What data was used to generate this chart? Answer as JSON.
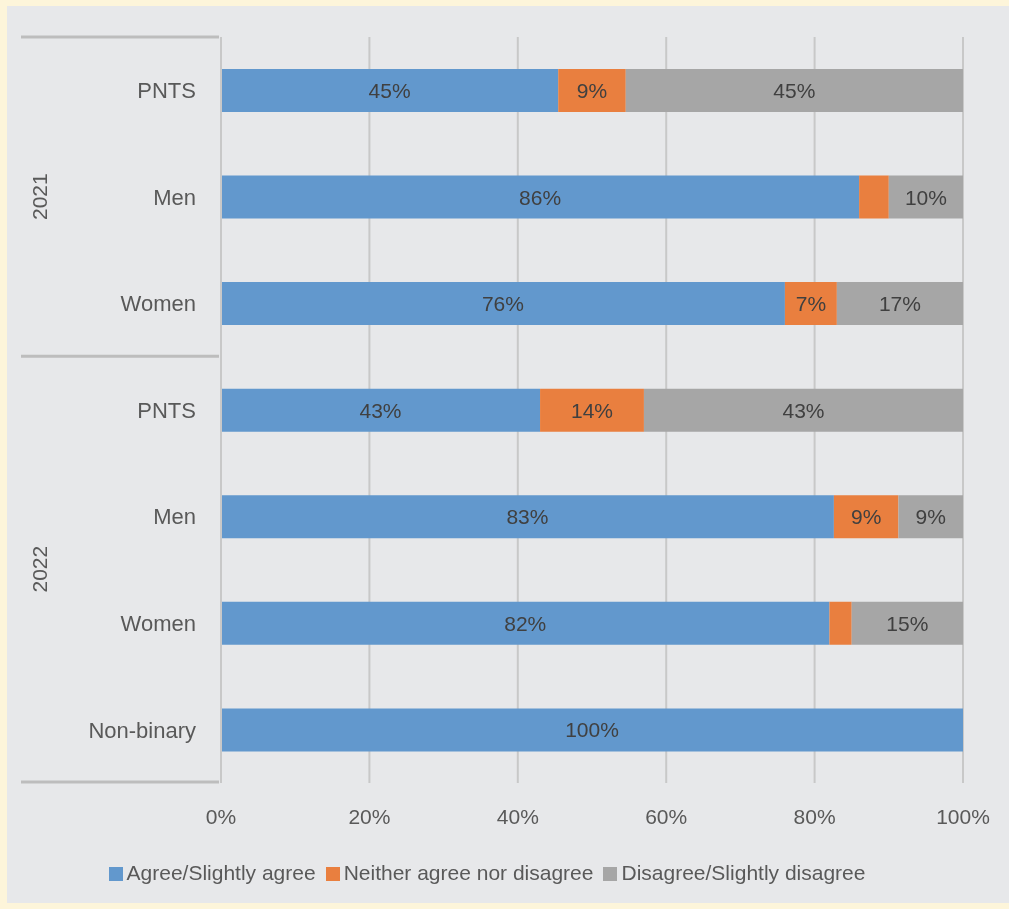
{
  "chart_data": {
    "type": "bar",
    "orientation": "horizontal",
    "stacked": true,
    "categories": [
      "PNTS",
      "Men",
      "Women",
      "PNTS",
      "Men",
      "Women",
      "Non-binary"
    ],
    "series": [
      {
        "name": "Agree/Slightly agree",
        "color": "#6298cd",
        "values": [
          45.45,
          86,
          76,
          43,
          82.6,
          82,
          100
        ],
        "value_labels": [
          "45%",
          "86%",
          "76%",
          "43%",
          "83%",
          "82%",
          "100%"
        ]
      },
      {
        "name": "Neither agree nor disagree",
        "color": "#e97f3f",
        "values": [
          9.1,
          4,
          7,
          14,
          8.7,
          3,
          0
        ],
        "value_labels": [
          "9%",
          null,
          "7%",
          "14%",
          "9%",
          null,
          null
        ]
      },
      {
        "name": "Disagree/Slightly disagree",
        "color": "#a6a6a6",
        "values": [
          45.45,
          10,
          17,
          43,
          8.7,
          15,
          0
        ],
        "value_labels": [
          "45%",
          "10%",
          "17%",
          "43%",
          "9%",
          "15%",
          null
        ]
      }
    ],
    "xlim": [
      0,
      100
    ],
    "xticks": [
      {
        "value": 0,
        "label": "0%"
      },
      {
        "value": 20,
        "label": "20%"
      },
      {
        "value": 40,
        "label": "40%"
      },
      {
        "value": 60,
        "label": "60%"
      },
      {
        "value": 80,
        "label": "80%"
      },
      {
        "value": 100,
        "label": "100%"
      }
    ],
    "grid": "x",
    "legend": "bottom",
    "annotations": [
      "2021",
      "2022"
    ]
  }
}
